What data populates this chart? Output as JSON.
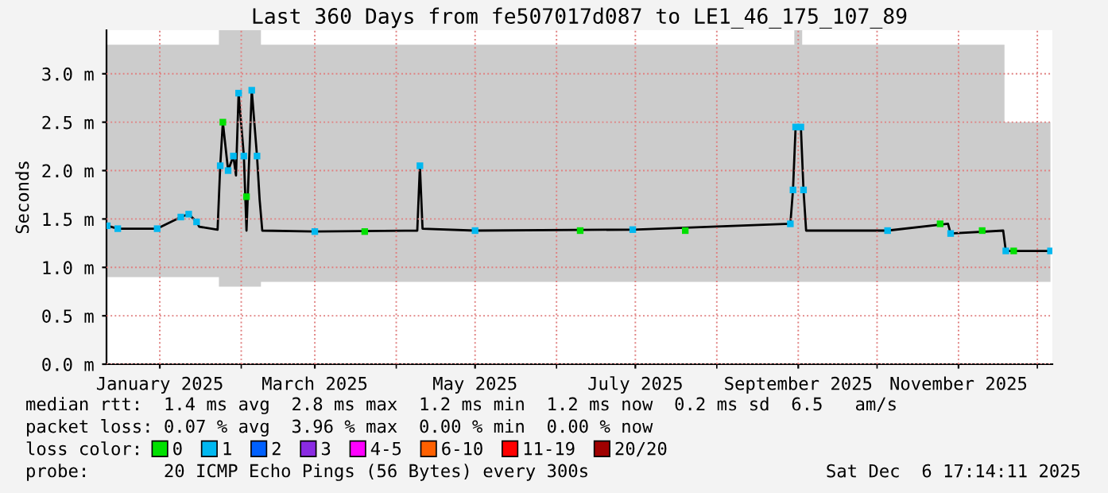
{
  "chart_data": {
    "type": "line",
    "title": "Last 360 Days from fe507017d087 to LE1_46_175_107_89",
    "ylabel": "Seconds",
    "xlim": [
      "2024-12-11T17:14",
      "2025-12-06T17:14"
    ],
    "xticks": [
      {
        "value": "2025-01-01",
        "label": "January 2025"
      },
      {
        "value": "2025-02-01",
        "label": null
      },
      {
        "value": "2025-03-01",
        "label": "March 2025"
      },
      {
        "value": "2025-04-01",
        "label": null
      },
      {
        "value": "2025-05-01",
        "label": "May 2025"
      },
      {
        "value": "2025-06-01",
        "label": null
      },
      {
        "value": "2025-07-01",
        "label": "July 2025"
      },
      {
        "value": "2025-08-01",
        "label": null
      },
      {
        "value": "2025-09-01",
        "label": "September 2025"
      },
      {
        "value": "2025-10-01",
        "label": null
      },
      {
        "value": "2025-11-01",
        "label": "November 2025"
      },
      {
        "value": "2025-12-01",
        "label": null
      }
    ],
    "ylim": [
      0,
      3.45
    ],
    "yticks": [
      {
        "value": 0,
        "label": "0.0 m"
      },
      {
        "value": 0.5,
        "label": "0.5 m"
      },
      {
        "value": 1.0,
        "label": "1.0 m"
      },
      {
        "value": 1.5,
        "label": "1.5 m"
      },
      {
        "value": 2.0,
        "label": "2.0 m"
      },
      {
        "value": 2.5,
        "label": "2.5 m"
      },
      {
        "value": 3.0,
        "label": "3.0 m"
      }
    ],
    "grid": true,
    "legend": "bottom",
    "legend_title": "loss color:",
    "series": [
      {
        "color": "#000000",
        "x": [
          "2024-12-12",
          "2024-12-16",
          "2024-12-31",
          "2025-01-09",
          "2025-01-12",
          "2025-01-15",
          "2025-01-16",
          "2025-01-23",
          "2025-01-24",
          "2025-01-25",
          "2025-01-27",
          "2025-01-29",
          "2025-01-30",
          "2025-01-31",
          "2025-02-02",
          "2025-02-03",
          "2025-02-05",
          "2025-02-07",
          "2025-02-08",
          "2025-02-09",
          "2025-03-01",
          "2025-04-09",
          "2025-04-10",
          "2025-04-11",
          "2025-05-01",
          "2025-06-30",
          "2025-08-29",
          "2025-08-30",
          "2025-08-31",
          "2025-09-02",
          "2025-09-03",
          "2025-09-04",
          "2025-10-05",
          "2025-10-28",
          "2025-10-29",
          "2025-11-18",
          "2025-11-19",
          "2025-12-06"
        ],
        "values": [
          1.43,
          1.4,
          1.4,
          1.52,
          1.55,
          1.47,
          1.42,
          1.39,
          2.05,
          2.5,
          2.0,
          2.15,
          1.95,
          2.8,
          2.15,
          1.38,
          2.83,
          2.15,
          1.7,
          1.38,
          1.37,
          1.38,
          2.05,
          1.4,
          1.38,
          1.39,
          1.45,
          1.8,
          2.45,
          2.45,
          1.8,
          1.38,
          1.38,
          1.45,
          1.35,
          1.38,
          1.17,
          1.17
        ],
        "lower": [
          0.9,
          0.9,
          0.9,
          0.9,
          0.9,
          0.9,
          0.9,
          0.9,
          0.8,
          0.8,
          0.8,
          0.8,
          0.8,
          0.8,
          0.8,
          0.8,
          0.8,
          0.8,
          0.8,
          0.85,
          0.85,
          0.85,
          0.85,
          0.85,
          0.85,
          0.85,
          0.85,
          0.85,
          0.85,
          0.85,
          0.85,
          0.85,
          0.85,
          0.85,
          0.85,
          0.85,
          0.85,
          0.85
        ],
        "upper": [
          3.3,
          3.3,
          3.3,
          3.3,
          3.3,
          3.3,
          3.3,
          3.3,
          3.45,
          3.45,
          3.45,
          3.45,
          3.45,
          3.45,
          3.45,
          3.45,
          3.45,
          3.45,
          3.45,
          3.3,
          3.3,
          3.3,
          3.3,
          3.3,
          3.3,
          3.3,
          3.3,
          3.3,
          3.45,
          3.45,
          3.3,
          3.3,
          3.3,
          3.3,
          3.3,
          3.3,
          2.5,
          2.5
        ]
      },
      {
        "type": "scatter",
        "name": "0",
        "color": "#00e000",
        "x": [
          "2025-01-25",
          "2025-02-03",
          "2025-03-20",
          "2025-06-10",
          "2025-07-20",
          "2025-10-25",
          "2025-11-10",
          "2025-11-22"
        ],
        "values": [
          2.5,
          1.73,
          1.37,
          1.38,
          1.38,
          1.45,
          1.38,
          1.17
        ]
      },
      {
        "type": "scatter",
        "name": "1",
        "color": "#00b8f0",
        "x": [
          "2024-12-12",
          "2024-12-16",
          "2024-12-31",
          "2025-01-09",
          "2025-01-12",
          "2025-01-15",
          "2025-01-24",
          "2025-01-27",
          "2025-01-29",
          "2025-01-31",
          "2025-02-02",
          "2025-02-05",
          "2025-02-07",
          "2025-03-01",
          "2025-04-10",
          "2025-05-01",
          "2025-06-30",
          "2025-08-29",
          "2025-08-30",
          "2025-08-31",
          "2025-09-02",
          "2025-09-03",
          "2025-10-05",
          "2025-10-29",
          "2025-11-19",
          "2025-12-06"
        ],
        "values": [
          1.43,
          1.4,
          1.4,
          1.52,
          1.55,
          1.47,
          2.05,
          2.0,
          2.15,
          2.8,
          2.15,
          2.83,
          2.15,
          1.37,
          2.05,
          1.38,
          1.39,
          1.45,
          1.8,
          2.45,
          2.45,
          1.8,
          1.38,
          1.35,
          1.17,
          1.17
        ]
      },
      {
        "type": "scatter",
        "name": "2",
        "color": "#0060ff"
      },
      {
        "type": "scatter",
        "name": "3",
        "color": "#8a2be2"
      },
      {
        "type": "scatter",
        "name": "4-5",
        "color": "#ff00ff"
      },
      {
        "type": "scatter",
        "name": "6-10",
        "color": "#ff6000"
      },
      {
        "type": "scatter",
        "name": "11-19",
        "color": "#ff0000"
      },
      {
        "type": "scatter",
        "name": "20/20",
        "color": "#a00000"
      }
    ],
    "annotations": [
      "median rtt:  1.4 ms avg  2.8 ms max  1.2 ms min  1.2 ms now  0.2 ms sd  6.5   am/s",
      "packet loss: 0.07 % avg  3.96 % max  0.00 % min  0.00 % now",
      "probe:       20 ICMP Echo Pings (56 Bytes) every 300s",
      "Sat Dec  6 17:14:11 2025"
    ]
  }
}
